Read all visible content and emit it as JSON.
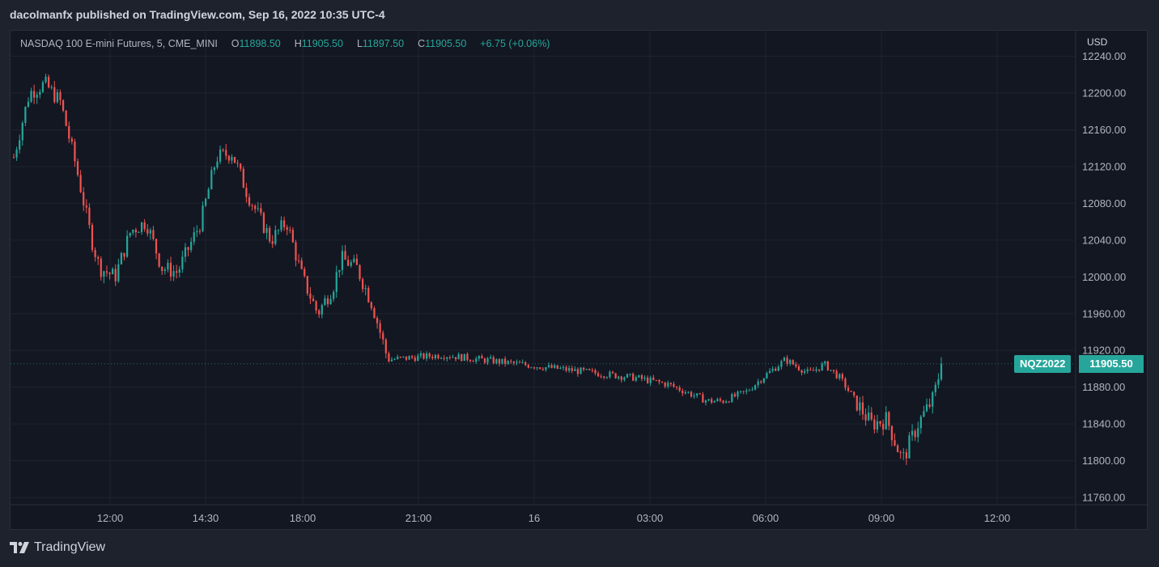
{
  "header": {
    "title": "dacolmanfx published on TradingView.com, Sep 16, 2022 10:35 UTC-4"
  },
  "legend": {
    "symbol": "NASDAQ 100 E-mini Futures, 5, CME_MINI",
    "o_label": "O",
    "o_value": "11898.50",
    "h_label": "H",
    "h_value": "11905.50",
    "l_label": "L",
    "l_value": "11897.50",
    "c_label": "C",
    "c_value": "11905.50",
    "change": "+6.75 (+0.06%)"
  },
  "currency": "USD",
  "price_tag": {
    "symbol": "NQZ2022",
    "price": "11905.50"
  },
  "footer": {
    "brand": "TradingView",
    "logo_icon": "tradingview-logo-icon"
  },
  "colors": {
    "up": "#26a69a",
    "down": "#ef5350",
    "background": "#131722",
    "grid": "#1f2330",
    "text": "#b2b5be"
  },
  "chart_data": {
    "type": "candlestick",
    "ylim": [
      11740,
      12250
    ],
    "yticks": [
      "12240.00",
      "12200.00",
      "12160.00",
      "12120.00",
      "12080.00",
      "12040.00",
      "12000.00",
      "11960.00",
      "11920.00",
      "11880.00",
      "11840.00",
      "11800.00",
      "11760.00"
    ],
    "xticks": [
      "12:00",
      "14:30",
      "18:00",
      "21:00",
      "16",
      "03:00",
      "06:00",
      "09:00",
      "12:00"
    ],
    "last_price": 11905.5,
    "close_path": [
      [
        0,
        12130
      ],
      [
        2,
        12200
      ],
      [
        4,
        12210
      ],
      [
        6,
        12190
      ],
      [
        8,
        12120
      ],
      [
        10,
        12040
      ],
      [
        11,
        12010
      ],
      [
        13,
        12000
      ],
      [
        15,
        12050
      ],
      [
        17,
        12060
      ],
      [
        19,
        12010
      ],
      [
        21,
        12005
      ],
      [
        24,
        12060
      ],
      [
        26,
        12130
      ],
      [
        28,
        12135
      ],
      [
        30,
        12090
      ],
      [
        33,
        12040
      ],
      [
        35,
        12060
      ],
      [
        37,
        12000
      ],
      [
        39,
        11960
      ],
      [
        41,
        11990
      ],
      [
        42,
        12020
      ],
      [
        44,
        12010
      ],
      [
        46,
        11970
      ],
      [
        48,
        11910
      ],
      [
        55,
        11915
      ],
      [
        60,
        11910
      ],
      [
        65,
        11905
      ],
      [
        70,
        11900
      ],
      [
        75,
        11895
      ],
      [
        80,
        11890
      ],
      [
        84,
        11883
      ],
      [
        89,
        11865
      ],
      [
        91,
        11865
      ],
      [
        94,
        11875
      ],
      [
        96,
        11890
      ],
      [
        99,
        11910
      ],
      [
        102,
        11895
      ],
      [
        104,
        11905
      ],
      [
        106,
        11890
      ],
      [
        110,
        11840
      ],
      [
        112,
        11845
      ],
      [
        114,
        11800
      ],
      [
        116,
        11840
      ],
      [
        118,
        11868
      ],
      [
        119,
        11905
      ]
    ]
  }
}
